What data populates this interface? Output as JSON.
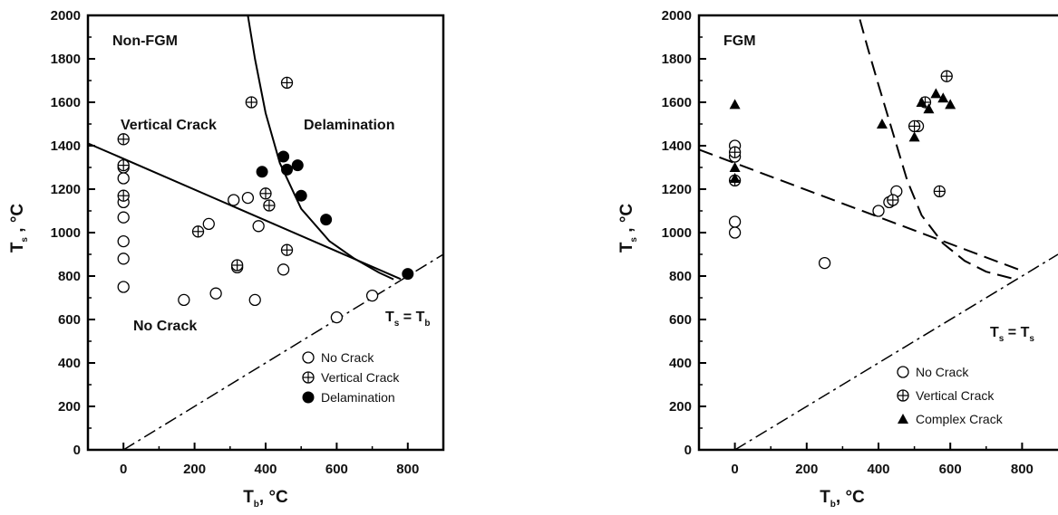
{
  "chart_data": [
    {
      "type": "scatter",
      "title": "Non-FGM",
      "xlim": [
        -100,
        900
      ],
      "ylim": [
        0,
        2000
      ],
      "xticks": [
        "0",
        "200",
        "400",
        "600",
        "800"
      ],
      "yticks": [
        "0",
        "200",
        "400",
        "600",
        "800",
        "1000",
        "1200",
        "1400",
        "1600",
        "1800",
        "2000"
      ],
      "xlabel": {
        "main": "T",
        "sub": "b",
        "unit": ", °C"
      },
      "ylabel": {
        "main": "T",
        "sub": "s",
        "unit": " , °C"
      },
      "region_labels": [
        "Vertical Crack",
        "Delamination",
        "No Crack"
      ],
      "diagonal_label": {
        "left": "T",
        "left_sub": "s",
        "eq": " = T",
        "right_sub": "b"
      },
      "legend": [
        {
          "label": "No Crack",
          "marker": "open-circle"
        },
        {
          "label": "Vertical Crack",
          "marker": "crossed-circle"
        },
        {
          "label": "Delamination",
          "marker": "filled-circle"
        }
      ],
      "series": [
        {
          "name": "No Crack",
          "marker": "open-circle",
          "points": [
            [
              0,
              1300
            ],
            [
              0,
              1250
            ],
            [
              0,
              1140
            ],
            [
              0,
              1070
            ],
            [
              0,
              960
            ],
            [
              0,
              880
            ],
            [
              0,
              750
            ],
            [
              170,
              690
            ],
            [
              240,
              1040
            ],
            [
              260,
              720
            ],
            [
              310,
              1150
            ],
            [
              320,
              840
            ],
            [
              350,
              1160
            ],
            [
              370,
              690
            ],
            [
              380,
              1030
            ],
            [
              450,
              830
            ],
            [
              600,
              610
            ],
            [
              700,
              710
            ]
          ]
        },
        {
          "name": "Vertical Crack",
          "marker": "crossed-circle",
          "points": [
            [
              0,
              1430
            ],
            [
              0,
              1310
            ],
            [
              0,
              1170
            ],
            [
              210,
              1005
            ],
            [
              320,
              850
            ],
            [
              360,
              1600
            ],
            [
              400,
              1180
            ],
            [
              410,
              1125
            ],
            [
              460,
              1690
            ],
            [
              460,
              920
            ]
          ]
        },
        {
          "name": "Delamination",
          "marker": "filled-circle",
          "points": [
            [
              390,
              1280
            ],
            [
              450,
              1350
            ],
            [
              460,
              1290
            ],
            [
              490,
              1310
            ],
            [
              500,
              1170
            ],
            [
              570,
              1060
            ],
            [
              800,
              810
            ]
          ]
        }
      ],
      "boundary_solid": {
        "line_ts_intercept": 1340,
        "line_slope": -0.71,
        "curve": [
          [
            760,
            785
          ],
          [
            720,
            815
          ],
          [
            650,
            880
          ],
          [
            580,
            960
          ],
          [
            500,
            1110
          ],
          [
            440,
            1320
          ],
          [
            400,
            1550
          ],
          [
            370,
            1800
          ],
          [
            355,
            1950
          ],
          [
            350,
            2000
          ]
        ]
      },
      "diagonal_dashdot": "Ts = Tb"
    },
    {
      "type": "scatter",
      "title": "FGM",
      "xlim": [
        -100,
        900
      ],
      "ylim": [
        0,
        2000
      ],
      "xticks": [
        "0",
        "200",
        "400",
        "600",
        "800"
      ],
      "yticks": [
        "0",
        "200",
        "400",
        "600",
        "800",
        "1000",
        "1200",
        "1400",
        "1600",
        "1800",
        "2000"
      ],
      "xlabel": {
        "main": "T",
        "sub": "b",
        "unit": ", °C"
      },
      "ylabel": {
        "main": "T",
        "sub": "s",
        "unit": " , °C"
      },
      "diagonal_label": {
        "left": "T",
        "left_sub": "s",
        "eq": " = T",
        "right_sub": "s"
      },
      "legend": [
        {
          "label": "No Crack",
          "marker": "open-circle"
        },
        {
          "label": "Vertical Crack",
          "marker": "crossed-circle"
        },
        {
          "label": "Complex Crack",
          "marker": "filled-triangle"
        }
      ],
      "series": [
        {
          "name": "No Crack",
          "marker": "open-circle",
          "points": [
            [
              0,
              1400
            ],
            [
              0,
              1350
            ],
            [
              0,
              1050
            ],
            [
              0,
              1000
            ],
            [
              250,
              860
            ],
            [
              400,
              1100
            ],
            [
              430,
              1140
            ],
            [
              450,
              1190
            ],
            [
              510,
              1490
            ]
          ]
        },
        {
          "name": "Vertical Crack",
          "marker": "crossed-circle",
          "points": [
            [
              0,
              1370
            ],
            [
              0,
              1240
            ],
            [
              440,
              1150
            ],
            [
              500,
              1490
            ],
            [
              530,
              1600
            ],
            [
              570,
              1190
            ],
            [
              590,
              1720
            ]
          ]
        },
        {
          "name": "Complex Crack",
          "marker": "filled-triangle",
          "points": [
            [
              0,
              1590
            ],
            [
              0,
              1300
            ],
            [
              0,
              1250
            ],
            [
              410,
              1500
            ],
            [
              500,
              1440
            ],
            [
              520,
              1600
            ],
            [
              540,
              1570
            ],
            [
              560,
              1640
            ],
            [
              580,
              1620
            ],
            [
              600,
              1590
            ]
          ]
        }
      ],
      "boundary_dashed": {
        "line_ts_intercept": 1320,
        "line_slope": -0.62,
        "curve": [
          [
            770,
            790
          ],
          [
            700,
            820
          ],
          [
            640,
            870
          ],
          [
            580,
            950
          ],
          [
            520,
            1080
          ],
          [
            480,
            1240
          ],
          [
            440,
            1460
          ],
          [
            400,
            1680
          ],
          [
            370,
            1850
          ],
          [
            345,
            2000
          ]
        ]
      },
      "diagonal_dashdot": "Ts = Ts"
    }
  ]
}
